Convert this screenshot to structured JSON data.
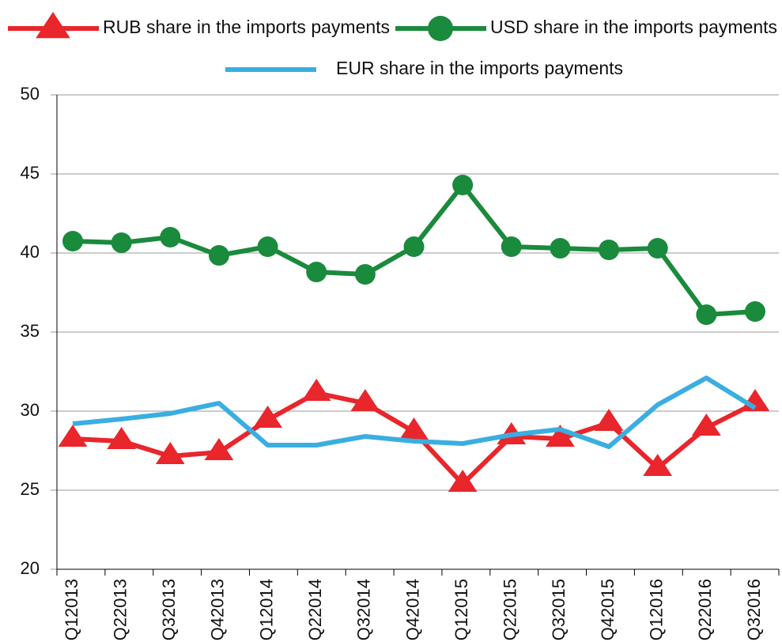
{
  "chart_data": {
    "type": "line",
    "categories": [
      "Q12013",
      "Q22013",
      "Q32013",
      "Q42013",
      "Q12014",
      "Q22014",
      "Q32014",
      "Q42014",
      "Q12015",
      "Q22015",
      "Q32015",
      "Q42015",
      "Q12016",
      "Q22016",
      "Q32016"
    ],
    "series": [
      {
        "name": "RUB share in the imports payments",
        "color": "#e8262b",
        "marker": "triangle",
        "values": [
          28.25,
          28.1,
          27.15,
          27.4,
          29.45,
          31.15,
          30.5,
          28.7,
          25.4,
          28.4,
          28.25,
          29.25,
          26.4,
          28.95,
          30.5
        ]
      },
      {
        "name": "USD share in the imports payments",
        "color": "#1a8a3c",
        "marker": "circle",
        "values": [
          40.75,
          40.65,
          41,
          39.85,
          40.4,
          38.8,
          38.65,
          40.4,
          44.3,
          40.4,
          40.3,
          40.2,
          40.3,
          36.1,
          36.3
        ]
      },
      {
        "name": "EUR share in the imports payments",
        "color": "#3aaee0",
        "marker": "none",
        "values": [
          29.2,
          29.5,
          29.85,
          30.5,
          27.85,
          27.85,
          28.4,
          28.1,
          27.95,
          28.5,
          28.85,
          27.75,
          30.4,
          32.1,
          30.2
        ]
      }
    ],
    "ylim": [
      20,
      50
    ],
    "yticks": [
      20,
      25,
      30,
      35,
      40,
      45,
      50
    ],
    "grid": true
  }
}
